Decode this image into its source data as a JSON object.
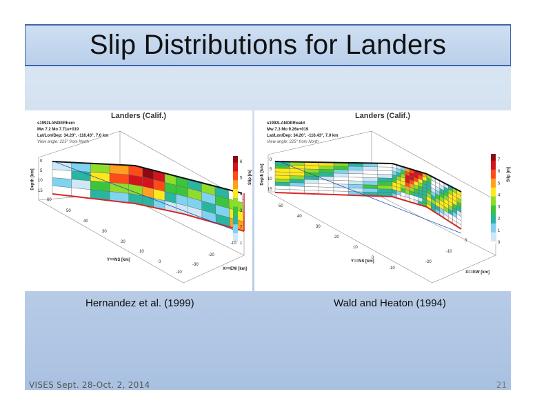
{
  "slide": {
    "title": "Slip Distributions for Landers",
    "footer_left": "VISES Sept. 28-Oct. 2, 2014",
    "page_number": "21"
  },
  "left_figure": {
    "title": "Landers (Calif.)",
    "model": "s1992LANDERhern",
    "magnitude": "Mw 7.2    Mo 7.71e+019",
    "location": "Lat/Lon/Dep: 34.20°, -116.43°, 7.0 km",
    "view": "View angle: 225° from North",
    "depth_label": "Depth [km]",
    "depth_ticks": [
      "0",
      "5",
      "10",
      "15"
    ],
    "y_label": "Y==NS [km]",
    "y_ticks": [
      "60",
      "50",
      "40",
      "30",
      "20",
      "10",
      "0",
      "-10"
    ],
    "x_label": "X==EW [km]",
    "x_ticks": [
      "-10",
      "-20",
      "-30"
    ],
    "colorbar_label": "Slip [m]",
    "colorbar_ticks": [
      "6",
      "5",
      "4",
      "3",
      "2",
      "1"
    ],
    "caption": "Hernandez et al. (1999)"
  },
  "right_figure": {
    "title": "Landers (Calif.)",
    "model": "s1992LANDERwald",
    "magnitude": "Mw 7.3    Mo 9.26e+019",
    "location": "Lat/Lon/Dep: 34.20°, -116.43°, 7.0 km",
    "view": "View angle: 225° from North",
    "depth_label": "Depth [km]",
    "depth_ticks": [
      "0",
      "5",
      "10",
      "15"
    ],
    "y_label": "Y==NS [km]",
    "y_ticks": [
      "50",
      "40",
      "30",
      "20",
      "10",
      "0",
      "-10"
    ],
    "x_label": "X==EW [km]",
    "x_ticks": [
      "0",
      "-10",
      "-20"
    ],
    "colorbar_label": "Slip [m]",
    "colorbar_ticks": [
      "7",
      "6",
      "5",
      "4",
      "3",
      "2",
      "1",
      "0"
    ],
    "caption": "Wald and Heaton (1994)"
  },
  "colors": {
    "title_border": "#3f63ad",
    "fault_trace": "#d62728"
  }
}
